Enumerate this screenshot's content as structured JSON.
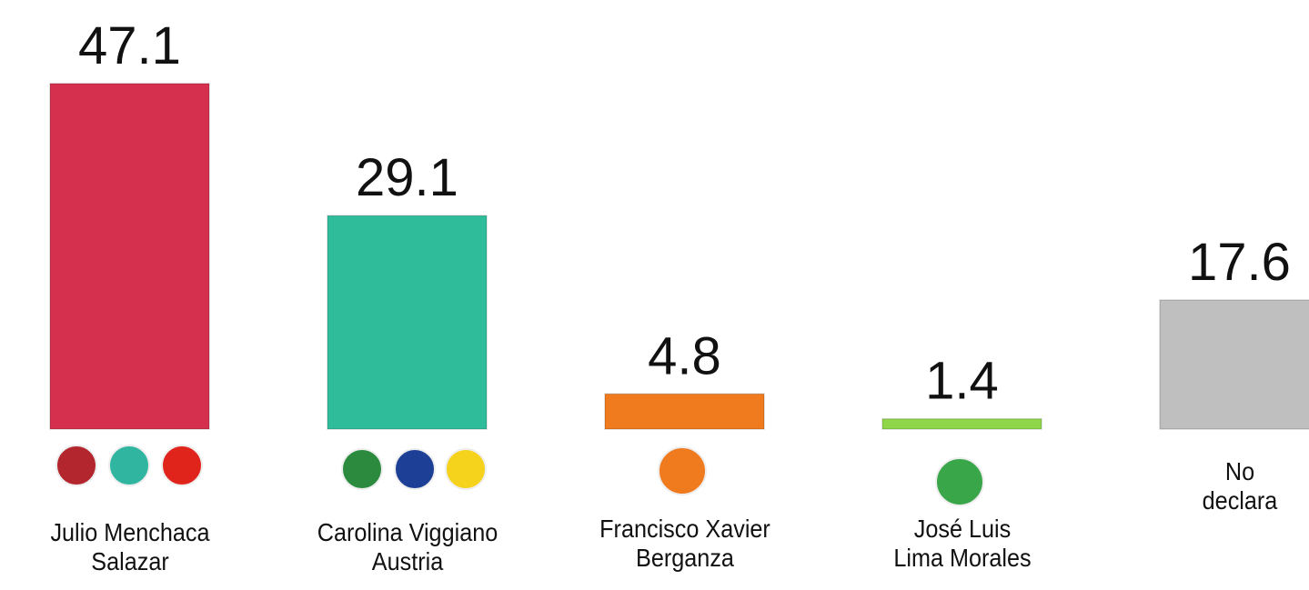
{
  "chart_data": {
    "type": "bar",
    "categories": [
      "Julio Menchaca\nSalazar",
      "Carolina Viggiano\nAustria",
      "Francisco Xavier\nBerganza",
      "José Luis\nLima Morales",
      "No\ndeclara"
    ],
    "values": [
      47.1,
      29.1,
      4.8,
      1.4,
      17.6
    ],
    "colors": [
      "#d5304e",
      "#2fbc9a",
      "#f07a1e",
      "#8fd649",
      "#bfbfbf"
    ],
    "ylim": [
      0,
      50
    ]
  }
}
